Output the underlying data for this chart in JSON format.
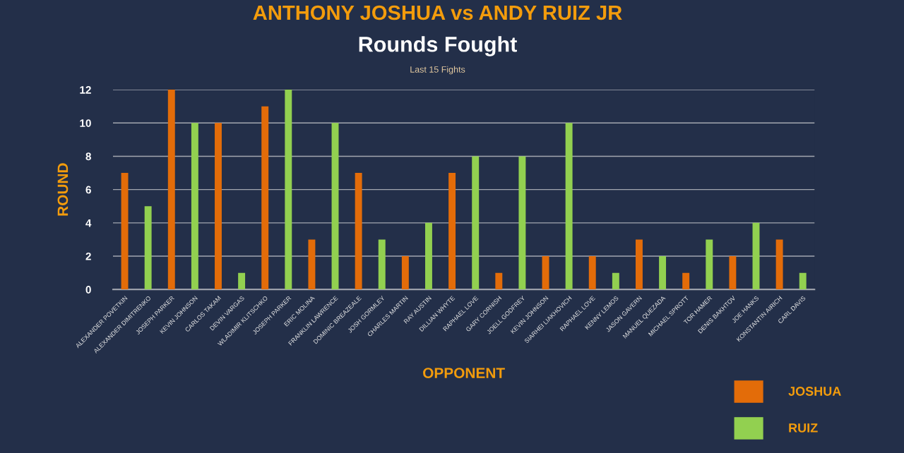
{
  "chart_data": {
    "type": "bar",
    "title": "ANTHONY JOSHUA vs ANDY RUIZ JR",
    "subtitle": "Rounds Fought",
    "annotations": [
      "Last 15 Fights"
    ],
    "xlabel": "OPPONENT",
    "ylabel": "ROUND",
    "categories": [
      "ALEXANDER POVETKIN",
      "ALEXANDER DIMITRENKO",
      "JOSEPH PARKER",
      "KEVIN JOHNSON",
      "CARLOS TAKAM",
      "DEVIN VARGAS",
      "WLADIMIR KLITSCHKO",
      "JOSEPH PARKER",
      "ERIC MOLINA",
      "FRANKLIN LAWRENCE",
      "DOMINIC BREAZEALE",
      "JOSH GORMLEY",
      "CHARLES MARTIN",
      "RAY AUSTIN",
      "DILLIAN WHYTE",
      "RAPHAEL LOVE",
      "GARY CORNISH",
      "JOELL GODFREY",
      "KEVIN JOHNSON",
      "SIARHEI LIAKHOVICH",
      "RAPHAEL LOVE",
      "KENNY LEMOS",
      "JASON GAVERN",
      "MANUEL QUEZADA",
      "MICHAEL SPROTT",
      "TOR HAMER",
      "DENIS BAKHTOV",
      "JOE HANKS",
      "KONSTANTIN AIRICH",
      "CARL DAVIS"
    ],
    "series": [
      {
        "name": "JOSHUA",
        "color": "#e36c09",
        "values": [
          7,
          null,
          12,
          null,
          10,
          null,
          11,
          null,
          3,
          null,
          7,
          null,
          2,
          null,
          7,
          null,
          1,
          null,
          2,
          null,
          2,
          null,
          3,
          null,
          1,
          null,
          2,
          null,
          3,
          null
        ]
      },
      {
        "name": "RUIZ",
        "color": "#92d050",
        "values": [
          null,
          5,
          null,
          10,
          null,
          1,
          null,
          12,
          null,
          10,
          null,
          3,
          null,
          4,
          null,
          8,
          null,
          8,
          null,
          10,
          null,
          1,
          null,
          2,
          null,
          3,
          null,
          4,
          null,
          1
        ]
      }
    ],
    "ylim": [
      0,
      12
    ],
    "yticks": [
      0,
      2,
      4,
      6,
      8,
      10,
      12
    ],
    "grid": "y",
    "legend": "bottom right"
  }
}
